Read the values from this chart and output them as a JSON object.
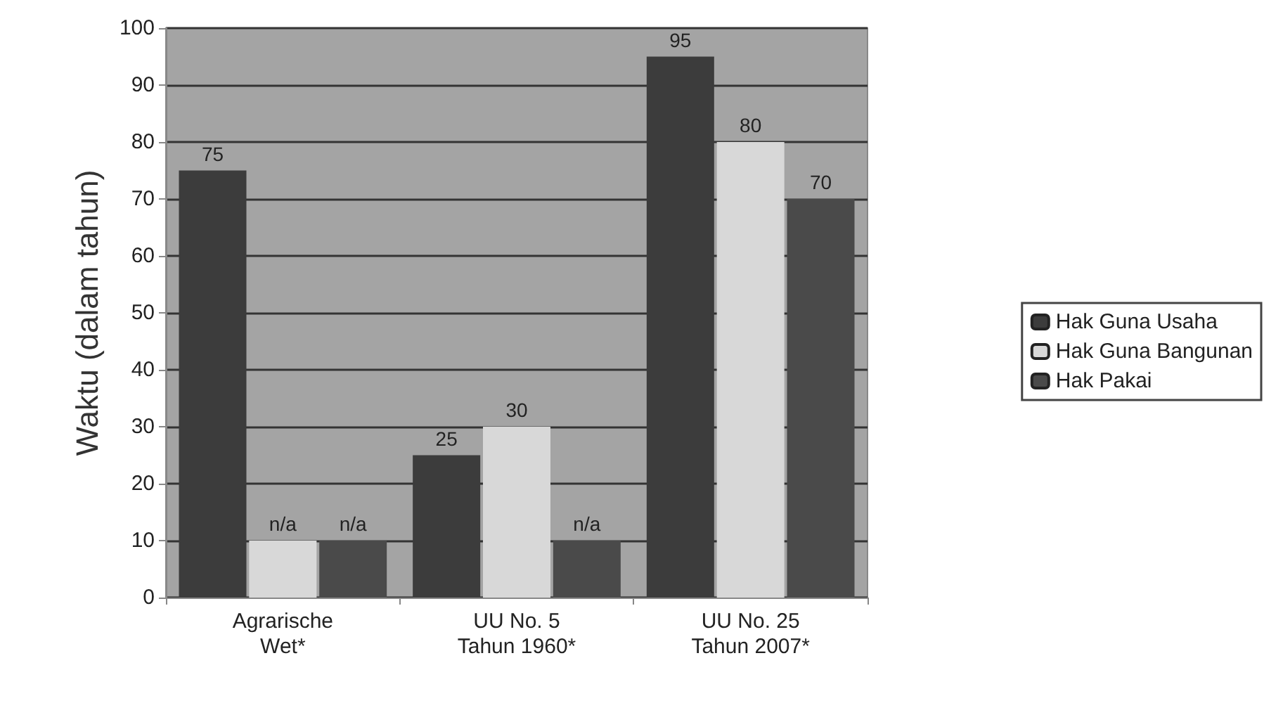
{
  "chart_data": {
    "type": "bar",
    "ylabel": "Waktu (dalam tahun)",
    "categories": [
      "Agrarische\nWet*",
      "UU No. 5\nTahun 1960*",
      "UU No. 25\nTahun 2007*"
    ],
    "series": [
      {
        "name": "Hak Guna Usaha",
        "color": "#3c3c3c",
        "values": [
          75,
          25,
          95
        ],
        "value_labels": [
          "75",
          "25",
          "95"
        ]
      },
      {
        "name": "Hak Guna Bangunan",
        "color": "#d8d8d8",
        "values": [
          10,
          30,
          80
        ],
        "value_labels": [
          "n/a",
          "30",
          "80"
        ]
      },
      {
        "name": "Hak Pakai",
        "color": "#4a4a4a",
        "values": [
          10,
          10,
          70
        ],
        "value_labels": [
          "n/a",
          "n/a",
          "70"
        ]
      }
    ],
    "ylim": [
      0,
      100
    ],
    "yticks": [
      0,
      10,
      20,
      30,
      40,
      50,
      60,
      70,
      80,
      90,
      100
    ],
    "grid": "y",
    "legend": "right"
  }
}
